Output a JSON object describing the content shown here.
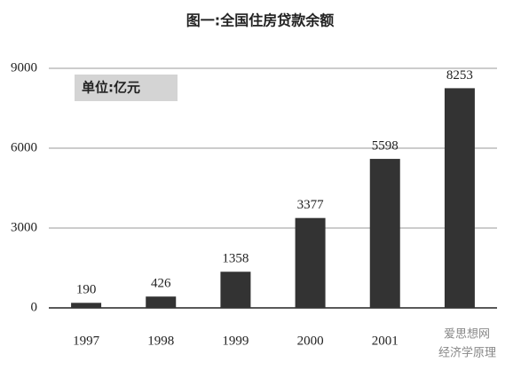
{
  "chart_data": {
    "type": "bar",
    "title": "图一:全国住房贷款余额",
    "unit_label": "单位:亿元",
    "categories": [
      "1997",
      "1998",
      "1999",
      "2000",
      "2001",
      null
    ],
    "values": [
      190,
      426,
      1358,
      3377,
      5598,
      8253
    ],
    "color": "#333333",
    "ylim": [
      0,
      9000
    ],
    "yticks": [
      0,
      3000,
      6000,
      9000
    ],
    "grid": true,
    "watermark": [
      "爱思想网",
      "经济学原理"
    ]
  }
}
